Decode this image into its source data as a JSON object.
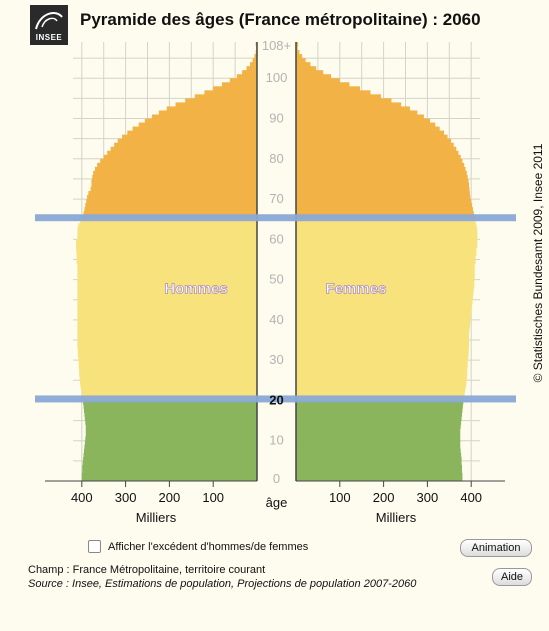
{
  "logo": {
    "text": "INSEE"
  },
  "header": {
    "title": "Pyramide des âges (France métropolitaine) : 2060"
  },
  "chart_data": {
    "type": "pyramid",
    "title": "Pyramide des âges (France métropolitaine) : 2060",
    "age_axis": {
      "label": "âge",
      "ticks": [
        "0",
        "10",
        "20",
        "30",
        "40",
        "50",
        "60",
        "70",
        "80",
        "90",
        "100",
        "108+"
      ],
      "range": [
        0,
        108
      ]
    },
    "value_axis": {
      "unit": "Milliers",
      "ticks": [
        "400",
        "300",
        "200",
        "100"
      ],
      "range": [
        0,
        420
      ]
    },
    "series": [
      {
        "name": "Hommes",
        "values": [
          400,
          400,
          399,
          399,
          398,
          397,
          396,
          395,
          394,
          393,
          392,
          391,
          391,
          391,
          392,
          393,
          394,
          395,
          396,
          397,
          398,
          400,
          401,
          403,
          404,
          405,
          406,
          406,
          407,
          407,
          408,
          409,
          409,
          410,
          410,
          410,
          410,
          410,
          410,
          410,
          410,
          410,
          410,
          410,
          410,
          410,
          410,
          410,
          410,
          410,
          410,
          410,
          410,
          410,
          412,
          412,
          412,
          413,
          413,
          413,
          410,
          410,
          410,
          408,
          404,
          400,
          396,
          394,
          392,
          390,
          388,
          385,
          380,
          378,
          378,
          376,
          374,
          370,
          365,
          358,
          350,
          342,
          334,
          326,
          318,
          308,
          296,
          284,
          270,
          256,
          240,
          224,
          206,
          186,
          164,
          142,
          120,
          100,
          80,
          62,
          46,
          34,
          24,
          16,
          10,
          6,
          3,
          2,
          3
        ]
      },
      {
        "name": "Femmes",
        "values": [
          380,
          380,
          379,
          379,
          378,
          378,
          377,
          376,
          375,
          375,
          375,
          375,
          375,
          376,
          377,
          378,
          379,
          380,
          381,
          382,
          383,
          385,
          386,
          388,
          389,
          390,
          391,
          391,
          392,
          392,
          393,
          394,
          394,
          395,
          395,
          395,
          395,
          396,
          397,
          398,
          399,
          400,
          401,
          402,
          403,
          404,
          405,
          406,
          407,
          407,
          408,
          408,
          408,
          408,
          410,
          410,
          412,
          412,
          414,
          414,
          414,
          414,
          414,
          412,
          410,
          408,
          406,
          404,
          402,
          400,
          398,
          397,
          396,
          395,
          394,
          392,
          390,
          387,
          384,
          380,
          376,
          371,
          366,
          360,
          354,
          346,
          338,
          328,
          318,
          306,
          292,
          277,
          260,
          240,
          218,
          194,
          170,
          146,
          122,
          100,
          80,
          62,
          46,
          33,
          22,
          14,
          8,
          4,
          5
        ]
      }
    ],
    "highlighted_ages": [
      "20",
      "65"
    ],
    "age_bands": [
      {
        "from": 0,
        "to": 19,
        "color": "#8ab55c"
      },
      {
        "from": 20,
        "to": 64,
        "color": "#f8e27c"
      },
      {
        "from": 65,
        "to": 108,
        "color": "#f2b245"
      }
    ],
    "band_line_color": "#8aa9d6",
    "xlabel": "Milliers",
    "ylabel": "âge"
  },
  "controls": {
    "excess_label": "Afficher l'excédent d'hommes/de femmes",
    "animation_label": "Animation",
    "help_label": "Aide"
  },
  "footer": {
    "champ": "Champ : France Métropolitaine, territoire courant",
    "source": "Source : Insee, Estimations de population, Projections de population 2007-2060"
  },
  "copyright": "© Statistisches Bundesamt 2009, Insee 2011"
}
